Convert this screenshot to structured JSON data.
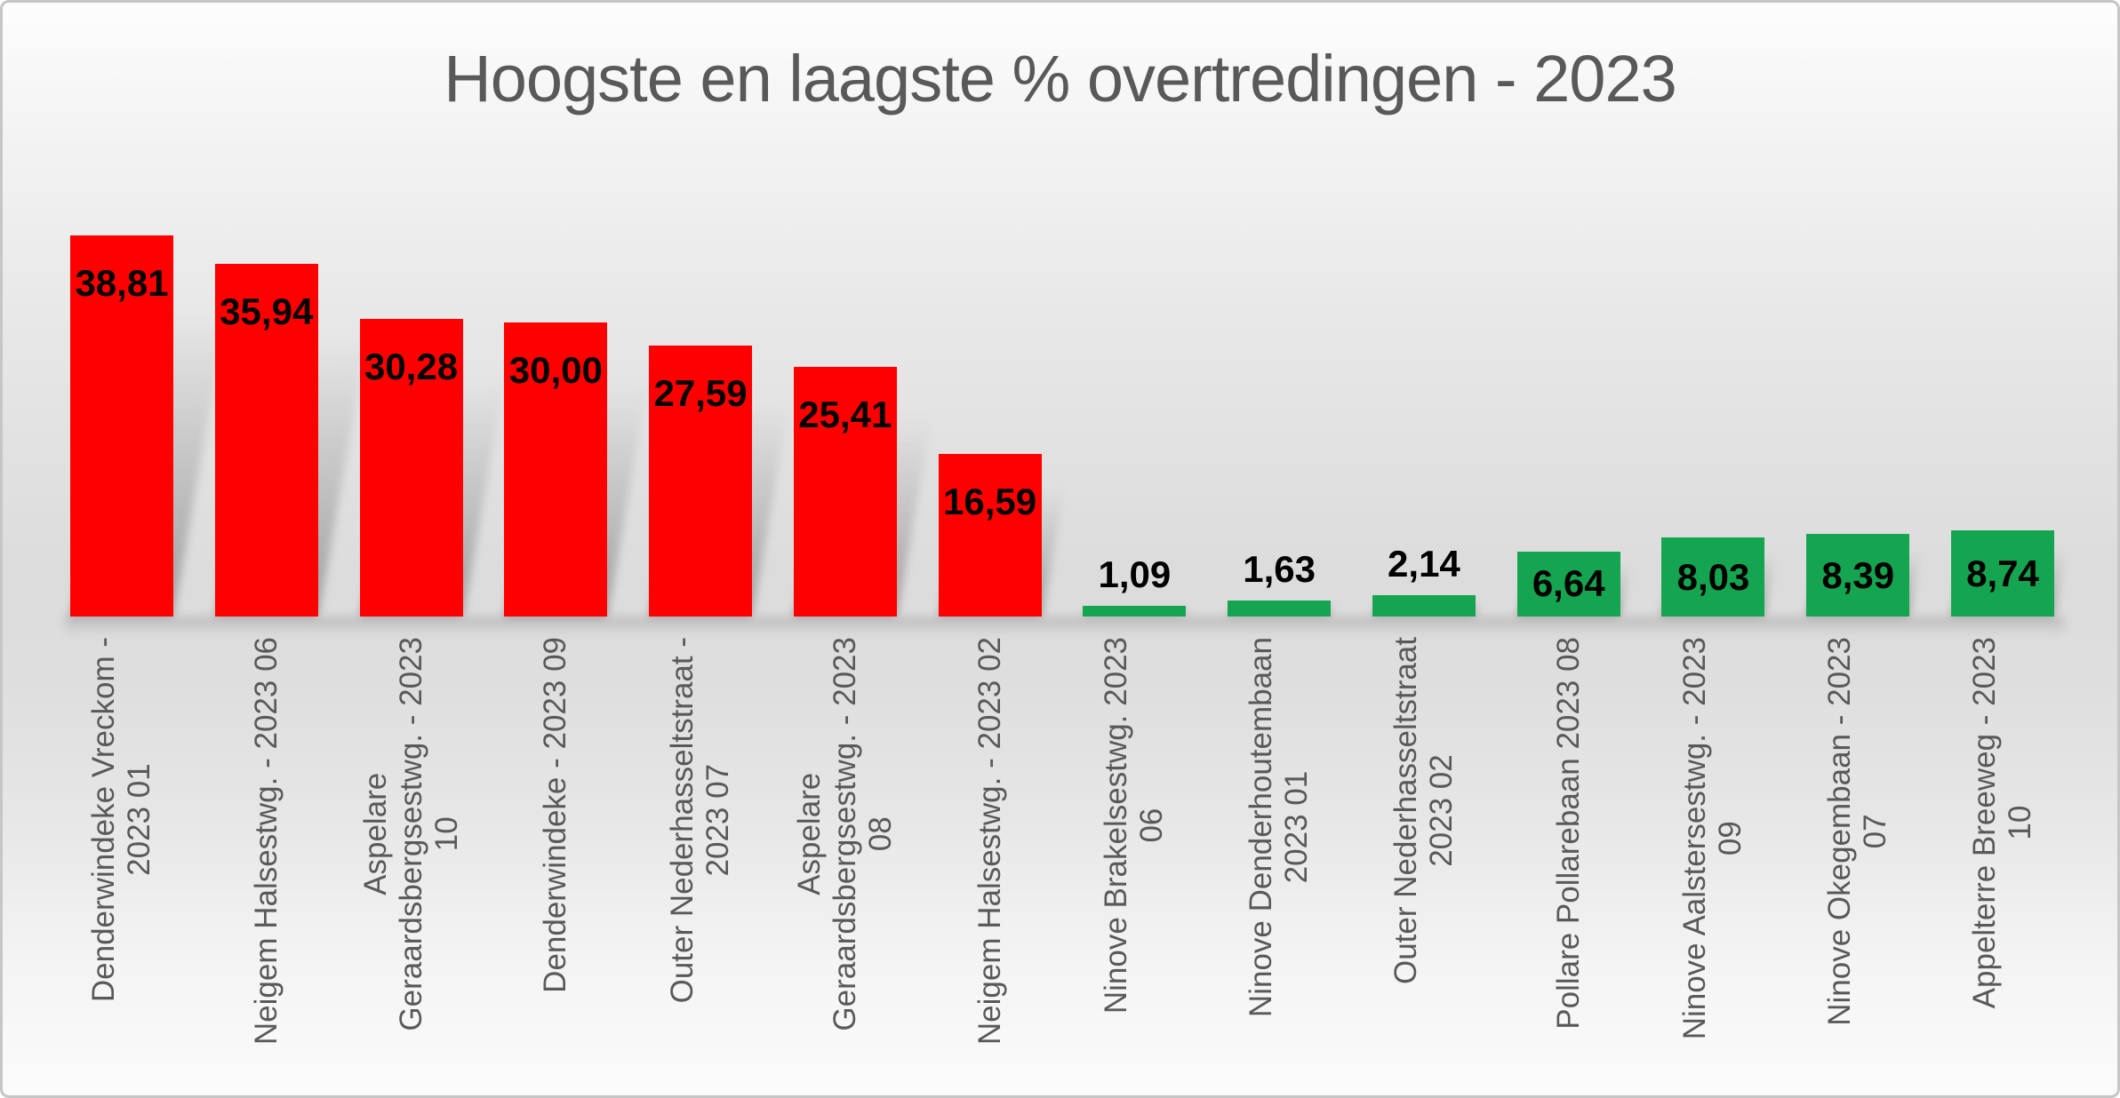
{
  "chart_data": {
    "type": "bar",
    "title": "Hoogste en laagste % overtredingen - 2023",
    "xlabel": "",
    "ylabel": "",
    "ylim": [
      0,
      40
    ],
    "grid": false,
    "legend_position": "none",
    "decimal_separator": ",",
    "high_color": "#ff0000",
    "low_color": "#15a550",
    "categories": [
      "Denderwindeke Vreckom -\n2023 01",
      "Neigem Halsestwg. - 2023 06",
      "Aspelare\nGeraardsbergsestwg. - 2023\n10",
      "Denderwindeke - 2023 09",
      "Outer Nederhasseltstraat -\n2023 07",
      "Aspelare\nGeraardsbergsestwg. - 2023\n08",
      "Neigem Halsestwg. - 2023 02",
      "Ninove Brakelsestwg. 2023\n06",
      "Ninove Denderhoutembaan\n2023 01",
      "Outer Nederhasseltstraat\n2023 02",
      "Pollare Pollarebaan 2023 08",
      "Ninove Aalstersestwg. - 2023\n09",
      "Ninove Okegembaan - 2023\n07",
      "Appelterre Breeweg - 2023\n10"
    ],
    "values": [
      38.81,
      35.94,
      30.28,
      30.0,
      27.59,
      25.41,
      16.59,
      1.09,
      1.63,
      2.14,
      6.64,
      8.03,
      8.39,
      8.74
    ],
    "value_labels": [
      "38,81",
      "35,94",
      "30,28",
      "30,00",
      "27,59",
      "25,41",
      "16,59",
      "1,09",
      "1,63",
      "2,14",
      "6,64",
      "8,03",
      "8,39",
      "8,74"
    ],
    "bar_colors": [
      "#ff0000",
      "#ff0000",
      "#ff0000",
      "#ff0000",
      "#ff0000",
      "#ff0000",
      "#ff0000",
      "#15a550",
      "#15a550",
      "#15a550",
      "#15a550",
      "#15a550",
      "#15a550",
      "#15a550"
    ]
  }
}
